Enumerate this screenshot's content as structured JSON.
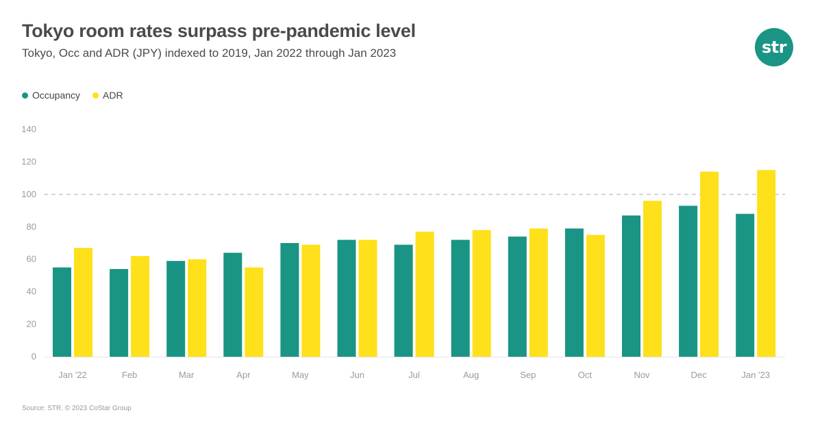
{
  "header": {
    "title": "Tokyo room rates surpass pre-pandemic level",
    "subtitle": "Tokyo, Occ and ADR (JPY) indexed to 2019, Jan 2022 through Jan 2023"
  },
  "logo": {
    "text": "str",
    "color": "#1a9484"
  },
  "legend": [
    {
      "label": "Occupancy",
      "color": "#1a9484"
    },
    {
      "label": "ADR",
      "color": "#fee01b"
    }
  ],
  "source": "Source: STR. © 2023 CoStar Group",
  "chart_data": {
    "type": "bar",
    "categories": [
      "Jan '22",
      "Feb",
      "Mar",
      "Apr",
      "May",
      "Jun",
      "Jul",
      "Aug",
      "Sep",
      "Oct",
      "Nov",
      "Dec",
      "Jan '23"
    ],
    "series": [
      {
        "name": "Occupancy",
        "color": "#1a9484",
        "values": [
          55,
          54,
          59,
          64,
          70,
          72,
          69,
          72,
          74,
          79,
          87,
          93,
          88
        ]
      },
      {
        "name": "ADR",
        "color": "#fee01b",
        "values": [
          67,
          62,
          60,
          55,
          69,
          72,
          77,
          78,
          79,
          75,
          96,
          114,
          115
        ]
      }
    ],
    "ylim": [
      0,
      140
    ],
    "yticks": [
      0,
      20,
      40,
      60,
      80,
      100,
      120,
      140
    ],
    "reference_line": 100,
    "grid": false,
    "legend_position": "top-left"
  }
}
